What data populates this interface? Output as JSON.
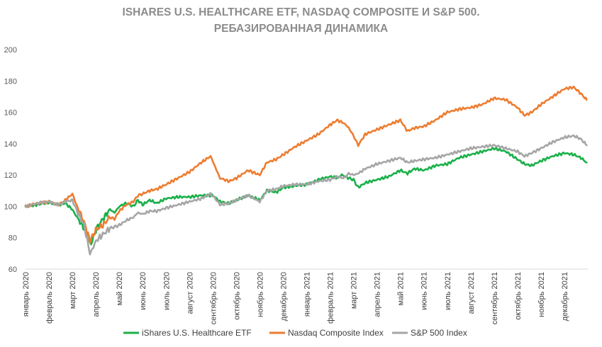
{
  "chart_data": {
    "type": "line",
    "title": "ISHARES U.S. HEALTHCARE ETF, NASDAQ COMPOSITE И S&P 500.",
    "subtitle": "РЕБАЗИРОВАННАЯ ДИНАМИКА",
    "ylim": [
      60,
      200
    ],
    "yticks": [
      "200",
      "180",
      "160",
      "140",
      "120",
      "100",
      "80",
      "60"
    ],
    "grid": false,
    "legend_position": "bottom",
    "categories": [
      "январь 2020",
      "февраль 2020",
      "март 2020",
      "апрель 2020",
      "май 2020",
      "июнь 2020",
      "июль 2020",
      "август 2020",
      "сентябрь 2020",
      "октябрь 2020",
      "ноябрь 2020",
      "декабрь 2020",
      "январь 2021",
      "февраль 2021",
      "март 2021",
      "апрель 2021",
      "май 2021",
      "июнь 2021",
      "июль 2021",
      "август 2021",
      "сентябрь 2021",
      "октябрь 2021",
      "ноябрь 2021",
      "декабрь 2021"
    ],
    "x_end": 23.95,
    "series": [
      {
        "name": "iShares U.S. Healthcare ETF",
        "color": "#1bb04a",
        "points": [
          [
            0,
            100
          ],
          [
            0.5,
            101
          ],
          [
            1,
            102.5
          ],
          [
            1.4,
            101
          ],
          [
            1.7,
            102
          ],
          [
            2.0,
            98
          ],
          [
            2.2,
            93
          ],
          [
            2.5,
            86
          ],
          [
            2.75,
            76
          ],
          [
            2.9,
            80
          ],
          [
            3.0,
            85
          ],
          [
            3.3,
            92
          ],
          [
            3.6,
            98
          ],
          [
            3.8,
            96
          ],
          [
            4.0,
            100
          ],
          [
            4.3,
            102
          ],
          [
            4.6,
            100
          ],
          [
            4.8,
            104
          ],
          [
            5.0,
            101
          ],
          [
            5.3,
            104
          ],
          [
            5.6,
            102
          ],
          [
            6.0,
            105
          ],
          [
            6.5,
            106
          ],
          [
            7.0,
            106
          ],
          [
            7.5,
            107
          ],
          [
            8.0,
            107
          ],
          [
            8.3,
            103
          ],
          [
            8.7,
            102
          ],
          [
            9.0,
            104
          ],
          [
            9.5,
            107
          ],
          [
            10.0,
            104
          ],
          [
            10.3,
            110
          ],
          [
            10.7,
            109
          ],
          [
            11.0,
            112
          ],
          [
            11.5,
            113
          ],
          [
            12.0,
            114
          ],
          [
            12.5,
            117
          ],
          [
            13.0,
            119
          ],
          [
            13.3,
            118
          ],
          [
            13.5,
            120
          ],
          [
            13.8,
            118
          ],
          [
            14.0,
            117
          ],
          [
            14.2,
            112
          ],
          [
            14.5,
            115
          ],
          [
            15.0,
            117
          ],
          [
            15.5,
            119
          ],
          [
            16.0,
            123
          ],
          [
            16.3,
            121
          ],
          [
            16.6,
            124
          ],
          [
            17.0,
            123
          ],
          [
            17.5,
            126
          ],
          [
            18.0,
            127
          ],
          [
            18.5,
            131
          ],
          [
            19.0,
            133
          ],
          [
            19.5,
            135
          ],
          [
            20.0,
            137
          ],
          [
            20.5,
            135
          ],
          [
            21.0,
            130
          ],
          [
            21.3,
            127
          ],
          [
            21.6,
            126
          ],
          [
            22.0,
            129
          ],
          [
            22.5,
            132
          ],
          [
            23.0,
            134
          ],
          [
            23.4,
            133
          ],
          [
            23.7,
            131
          ],
          [
            23.95,
            128
          ]
        ]
      },
      {
        "name": "Nasdaq Composite Index",
        "color": "#ed7d31",
        "points": [
          [
            0,
            100
          ],
          [
            0.5,
            102
          ],
          [
            1,
            103
          ],
          [
            1.4,
            101
          ],
          [
            1.7,
            104
          ],
          [
            2.0,
            108
          ],
          [
            2.2,
            100
          ],
          [
            2.5,
            90
          ],
          [
            2.75,
            78
          ],
          [
            2.9,
            82
          ],
          [
            3.0,
            85
          ],
          [
            3.3,
            88
          ],
          [
            3.6,
            93
          ],
          [
            3.8,
            92
          ],
          [
            4.0,
            97
          ],
          [
            4.3,
            101
          ],
          [
            4.6,
            103
          ],
          [
            4.8,
            107
          ],
          [
            5.0,
            108
          ],
          [
            5.3,
            110
          ],
          [
            5.6,
            111
          ],
          [
            6.0,
            114
          ],
          [
            6.5,
            118
          ],
          [
            7.0,
            122
          ],
          [
            7.5,
            128
          ],
          [
            7.9,
            132
          ],
          [
            8.1,
            125
          ],
          [
            8.3,
            118
          ],
          [
            8.7,
            116
          ],
          [
            9.0,
            118
          ],
          [
            9.5,
            123
          ],
          [
            10.0,
            120
          ],
          [
            10.3,
            128
          ],
          [
            10.7,
            130
          ],
          [
            11.0,
            133
          ],
          [
            11.5,
            138
          ],
          [
            12.0,
            142
          ],
          [
            12.5,
            146
          ],
          [
            13.0,
            152
          ],
          [
            13.3,
            155
          ],
          [
            13.6,
            153
          ],
          [
            13.8,
            150
          ],
          [
            14.0,
            145
          ],
          [
            14.2,
            139
          ],
          [
            14.5,
            146
          ],
          [
            15.0,
            149
          ],
          [
            15.5,
            152
          ],
          [
            16.0,
            155
          ],
          [
            16.3,
            148
          ],
          [
            16.6,
            150
          ],
          [
            17.0,
            151
          ],
          [
            17.5,
            155
          ],
          [
            18.0,
            160
          ],
          [
            18.5,
            162
          ],
          [
            19.0,
            163
          ],
          [
            19.5,
            165
          ],
          [
            20.0,
            169
          ],
          [
            20.5,
            168
          ],
          [
            21.0,
            163
          ],
          [
            21.3,
            158
          ],
          [
            21.6,
            160
          ],
          [
            22.0,
            165
          ],
          [
            22.5,
            170
          ],
          [
            23.0,
            175
          ],
          [
            23.4,
            176
          ],
          [
            23.7,
            172
          ],
          [
            23.95,
            168
          ]
        ]
      },
      {
        "name": "S&P 500 Index",
        "color": "#a6a6a6",
        "points": [
          [
            0,
            100
          ],
          [
            0.5,
            102
          ],
          [
            1,
            103
          ],
          [
            1.4,
            101
          ],
          [
            1.7,
            103
          ],
          [
            2.0,
            104
          ],
          [
            2.2,
            97
          ],
          [
            2.5,
            88
          ],
          [
            2.75,
            70
          ],
          [
            2.9,
            74
          ],
          [
            3.0,
            78
          ],
          [
            3.3,
            82
          ],
          [
            3.6,
            86
          ],
          [
            3.8,
            87
          ],
          [
            4.0,
            88
          ],
          [
            4.3,
            91
          ],
          [
            4.6,
            93
          ],
          [
            4.8,
            96
          ],
          [
            5.0,
            95
          ],
          [
            5.3,
            97
          ],
          [
            5.6,
            97
          ],
          [
            6.0,
            99
          ],
          [
            6.5,
            101
          ],
          [
            7.0,
            103
          ],
          [
            7.5,
            105
          ],
          [
            7.9,
            108
          ],
          [
            8.1,
            105
          ],
          [
            8.3,
            101
          ],
          [
            8.7,
            102
          ],
          [
            9.0,
            104
          ],
          [
            9.5,
            107
          ],
          [
            10.0,
            103
          ],
          [
            10.3,
            110
          ],
          [
            10.7,
            111
          ],
          [
            11.0,
            113
          ],
          [
            11.5,
            114
          ],
          [
            12.0,
            114
          ],
          [
            12.5,
            116
          ],
          [
            13.0,
            117
          ],
          [
            13.3,
            119
          ],
          [
            13.6,
            118
          ],
          [
            13.8,
            121
          ],
          [
            14.0,
            120
          ],
          [
            14.2,
            121
          ],
          [
            14.5,
            124
          ],
          [
            15.0,
            127
          ],
          [
            15.5,
            129
          ],
          [
            16.0,
            131
          ],
          [
            16.3,
            128
          ],
          [
            16.6,
            129
          ],
          [
            17.0,
            130
          ],
          [
            17.5,
            131
          ],
          [
            18.0,
            133
          ],
          [
            18.5,
            135
          ],
          [
            19.0,
            137
          ],
          [
            19.5,
            138
          ],
          [
            20.0,
            139
          ],
          [
            20.5,
            137
          ],
          [
            21.0,
            135
          ],
          [
            21.3,
            132
          ],
          [
            21.6,
            134
          ],
          [
            22.0,
            137
          ],
          [
            22.5,
            141
          ],
          [
            23.0,
            144
          ],
          [
            23.4,
            145
          ],
          [
            23.7,
            143
          ],
          [
            23.95,
            139
          ]
        ]
      }
    ]
  }
}
